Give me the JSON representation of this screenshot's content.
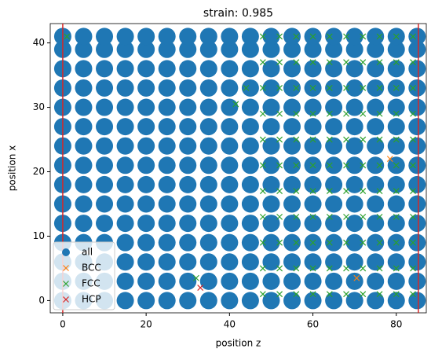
{
  "chart_data": {
    "type": "scatter",
    "title": "strain: 0.985",
    "xlabel": "position z",
    "ylabel": "position x",
    "xlim": [
      -3,
      87.2
    ],
    "ylim": [
      -1.9,
      43
    ],
    "xticks": [
      0,
      20,
      40,
      60,
      80
    ],
    "yticks": [
      0,
      10,
      20,
      30,
      40
    ],
    "legend": "lower left",
    "vlines": [
      0,
      85.3
    ],
    "vline_color": "#d62728",
    "series": [
      {
        "name": "all",
        "color": "#1f77b4",
        "marker": "o",
        "x": [
          0,
          5,
          10,
          15,
          20,
          25,
          30,
          35,
          40,
          45,
          50,
          55,
          60,
          65,
          70,
          75,
          80,
          85,
          0,
          5,
          10,
          15,
          20,
          25,
          30,
          35,
          40,
          45,
          50,
          55,
          60,
          65,
          70,
          75,
          80,
          85,
          0,
          5,
          10,
          15,
          20,
          25,
          30,
          35,
          40,
          45,
          50,
          55,
          60,
          65,
          70,
          75,
          80,
          85,
          0,
          5,
          10,
          15,
          20,
          25,
          30,
          35,
          40,
          45,
          50,
          55,
          60,
          65,
          70,
          75,
          80,
          85,
          0,
          5,
          10,
          15,
          20,
          25,
          30,
          35,
          40,
          45,
          50,
          55,
          60,
          65,
          70,
          75,
          80,
          85,
          0,
          5,
          10,
          15,
          20,
          25,
          30,
          35,
          40,
          45,
          50,
          55,
          60,
          65,
          70,
          75,
          80,
          85,
          0,
          5,
          10,
          15,
          20,
          25,
          30,
          35,
          40,
          45,
          50,
          55,
          60,
          65,
          70,
          75,
          80,
          85,
          0,
          5,
          10,
          15,
          20,
          25,
          30,
          35,
          40,
          45,
          50,
          55,
          60,
          65,
          70,
          75,
          80,
          85,
          0,
          5,
          10,
          15,
          20,
          25,
          30,
          35,
          40,
          45,
          50,
          55,
          60,
          65,
          70,
          75,
          80,
          85,
          0,
          5,
          10,
          15,
          20,
          25,
          30,
          35,
          40,
          45,
          50,
          55,
          60,
          65,
          70,
          75,
          80,
          85,
          0,
          5,
          10,
          15,
          20,
          25,
          30,
          35,
          40,
          45,
          50,
          55,
          60,
          65,
          70,
          75,
          80,
          85,
          0,
          5,
          10,
          15,
          20,
          25,
          30,
          35,
          40,
          45,
          50,
          55,
          60,
          65,
          70,
          75,
          80,
          85,
          0,
          5,
          10,
          15,
          20,
          25,
          30,
          35,
          40,
          45,
          50,
          55,
          60,
          65,
          70,
          75,
          80,
          85,
          0,
          5,
          10,
          15,
          20,
          25,
          30,
          35,
          40,
          45,
          50,
          55,
          60,
          65,
          70,
          75,
          80,
          85,
          0,
          5,
          10,
          15,
          20,
          25,
          30,
          35,
          40,
          45,
          50,
          55,
          60,
          65,
          70,
          75,
          80,
          85
        ],
        "y": [
          0,
          0,
          0,
          0,
          0,
          0,
          0,
          0,
          0,
          0,
          0,
          0,
          0,
          0,
          0,
          0,
          0,
          0,
          3,
          3,
          3,
          3,
          3,
          3,
          3,
          3,
          3,
          3,
          3,
          3,
          3,
          3,
          3,
          3,
          3,
          3,
          6,
          6,
          6,
          6,
          6,
          6,
          6,
          6,
          6,
          6,
          6,
          6,
          6,
          6,
          6,
          6,
          6,
          6,
          9,
          9,
          9,
          9,
          9,
          9,
          9,
          9,
          9,
          9,
          9,
          9,
          9,
          9,
          9,
          9,
          9,
          9,
          12,
          12,
          12,
          12,
          12,
          12,
          12,
          12,
          12,
          12,
          12,
          12,
          12,
          12,
          12,
          12,
          12,
          12,
          15,
          15,
          15,
          15,
          15,
          15,
          15,
          15,
          15,
          15,
          15,
          15,
          15,
          15,
          15,
          15,
          15,
          15,
          18,
          18,
          18,
          18,
          18,
          18,
          18,
          18,
          18,
          18,
          18,
          18,
          18,
          18,
          18,
          18,
          18,
          18,
          21,
          21,
          21,
          21,
          21,
          21,
          21,
          21,
          21,
          21,
          21,
          21,
          21,
          21,
          21,
          21,
          21,
          21,
          24,
          24,
          24,
          24,
          24,
          24,
          24,
          24,
          24,
          24,
          24,
          24,
          24,
          24,
          24,
          24,
          24,
          24,
          27,
          27,
          27,
          27,
          27,
          27,
          27,
          27,
          27,
          27,
          27,
          27,
          27,
          27,
          27,
          27,
          27,
          27,
          30,
          30,
          30,
          30,
          30,
          30,
          30,
          30,
          30,
          30,
          30,
          30,
          30,
          30,
          30,
          30,
          30,
          30,
          33,
          33,
          33,
          33,
          33,
          33,
          33,
          33,
          33,
          33,
          33,
          33,
          33,
          33,
          33,
          33,
          33,
          33,
          36,
          36,
          36,
          36,
          36,
          36,
          36,
          36,
          36,
          36,
          36,
          36,
          36,
          36,
          36,
          36,
          36,
          36,
          39,
          39,
          39,
          39,
          39,
          39,
          39,
          39,
          39,
          39,
          39,
          39,
          39,
          39,
          39,
          39,
          39,
          39,
          41,
          41,
          41,
          41,
          41,
          41,
          41,
          41,
          41,
          41,
          41,
          41,
          41,
          41,
          41,
          41,
          41,
          41
        ]
      },
      {
        "name": "BCC",
        "color": "#ff7f0e",
        "marker": "x",
        "x": [
          78.5,
          70.5
        ],
        "y": [
          22,
          3.5
        ]
      },
      {
        "name": "FCC",
        "color": "#2ca02c",
        "marker": "x",
        "x": [
          48,
          52,
          56,
          60,
          64,
          68,
          72,
          76,
          80,
          84,
          48,
          52,
          56,
          60,
          64,
          68,
          72,
          76,
          80,
          84,
          48,
          52,
          56,
          60,
          64,
          68,
          72,
          76,
          80,
          84,
          48,
          52,
          56,
          60,
          64,
          68,
          72,
          76,
          80,
          84,
          48,
          52,
          56,
          60,
          64,
          68,
          72,
          76,
          80,
          84,
          48,
          52,
          56,
          60,
          64,
          68,
          72,
          76,
          80,
          84,
          48,
          52,
          56,
          60,
          64,
          68,
          72,
          76,
          80,
          84,
          48,
          52,
          56,
          60,
          64,
          68,
          72,
          76,
          80,
          84,
          48,
          52,
          56,
          60,
          64,
          68,
          72,
          76,
          80,
          84,
          48,
          52,
          56,
          60,
          64,
          68,
          72,
          76,
          80,
          84,
          48,
          52,
          56,
          60,
          64,
          68,
          72,
          76,
          80,
          84,
          41.5,
          32,
          44,
          1
        ],
        "y": [
          1,
          1,
          1,
          1,
          1,
          1,
          1,
          1,
          1,
          1,
          5,
          5,
          5,
          5,
          5,
          5,
          5,
          5,
          5,
          5,
          9,
          9,
          9,
          9,
          9,
          9,
          9,
          9,
          9,
          9,
          13,
          13,
          13,
          13,
          13,
          13,
          13,
          13,
          13,
          13,
          17,
          17,
          17,
          17,
          17,
          17,
          17,
          17,
          17,
          17,
          21,
          21,
          21,
          21,
          21,
          21,
          21,
          21,
          21,
          21,
          25,
          25,
          25,
          25,
          25,
          25,
          25,
          25,
          25,
          25,
          29,
          29,
          29,
          29,
          29,
          29,
          29,
          29,
          29,
          29,
          33,
          33,
          33,
          33,
          33,
          33,
          33,
          33,
          33,
          33,
          37,
          37,
          37,
          37,
          37,
          37,
          37,
          37,
          37,
          37,
          41,
          41,
          41,
          41,
          41,
          41,
          41,
          41,
          41,
          41,
          30.5,
          3.5,
          33,
          41
        ]
      },
      {
        "name": "HCP",
        "color": "#d62728",
        "marker": "x",
        "x": [
          33
        ],
        "y": [
          2
        ]
      }
    ]
  }
}
